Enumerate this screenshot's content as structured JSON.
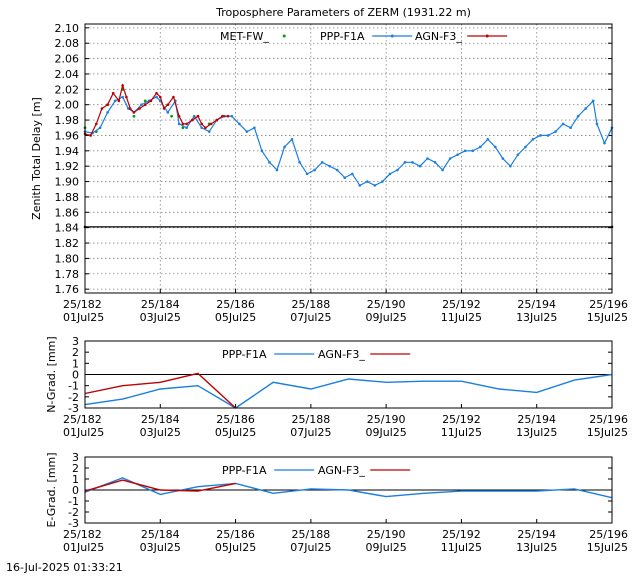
{
  "chart_data": [
    {
      "type": "scatter",
      "title": "Troposphere Parameters of ZERM (1931.22 m)",
      "ylabel": "Zenith Total Delay [m]",
      "xlabel": "",
      "xlim": [
        182,
        196
      ],
      "ylim": [
        1.755,
        2.105
      ],
      "yticks": [
        "1.76",
        "1.78",
        "1.80",
        "1.82",
        "1.84",
        "1.86",
        "1.88",
        "1.90",
        "1.92",
        "1.94",
        "1.96",
        "1.98",
        "2.00",
        "2.02",
        "2.04",
        "2.06",
        "2.08",
        "2.10"
      ],
      "xticks": [
        {
          "x": 182,
          "top": "25/182",
          "bottom": "01Jul25"
        },
        {
          "x": 184,
          "top": "25/184",
          "bottom": "03Jul25"
        },
        {
          "x": 186,
          "top": "25/186",
          "bottom": "05Jul25"
        },
        {
          "x": 188,
          "top": "25/188",
          "bottom": "07Jul25"
        },
        {
          "x": 190,
          "top": "25/190",
          "bottom": "09Jul25"
        },
        {
          "x": 192,
          "top": "25/192",
          "bottom": "11Jul25"
        },
        {
          "x": 194,
          "top": "25/194",
          "bottom": "13Jul25"
        },
        {
          "x": 196,
          "top": "25/196",
          "bottom": "15Jul25"
        }
      ],
      "grid": true,
      "legend": "top",
      "series": [
        {
          "name": "MET-FW_",
          "color": "#00a000",
          "style": "points",
          "x": [
            182.0,
            182.3,
            182.6,
            183.0,
            183.3,
            183.6,
            184.0,
            184.3,
            184.6,
            185.0,
            185.3,
            185.7
          ],
          "y": [
            1.97,
            1.965,
            2.0,
            2.02,
            1.985,
            2.005,
            2.005,
            1.985,
            1.97,
            1.985,
            1.975,
            1.985
          ]
        },
        {
          "name": "PPP-F1A",
          "color": "#1a7fe0",
          "style": "line-points",
          "x": [
            182.0,
            182.2,
            182.4,
            182.6,
            182.8,
            183.0,
            183.15,
            183.3,
            183.5,
            183.7,
            183.9,
            184.0,
            184.2,
            184.4,
            184.5,
            184.7,
            184.9,
            185.1,
            185.3,
            185.5,
            185.7,
            185.9,
            186.1,
            186.3,
            186.5,
            186.7,
            186.9,
            187.1,
            187.3,
            187.5,
            187.7,
            187.9,
            188.1,
            188.3,
            188.5,
            188.7,
            188.9,
            189.1,
            189.3,
            189.5,
            189.7,
            189.9,
            190.1,
            190.3,
            190.5,
            190.7,
            190.9,
            191.1,
            191.3,
            191.5,
            191.7,
            191.9,
            192.1,
            192.3,
            192.5,
            192.7,
            192.9,
            193.1,
            193.3,
            193.5,
            193.7,
            193.9,
            194.1,
            194.3,
            194.5,
            194.7,
            194.9,
            195.1,
            195.3,
            195.5,
            195.6,
            195.8,
            196.0
          ],
          "y": [
            1.965,
            1.963,
            1.97,
            1.99,
            2.005,
            2.01,
            1.995,
            1.99,
            2.0,
            2.005,
            2.01,
            2.005,
            1.99,
            2.005,
            1.975,
            1.97,
            1.985,
            1.97,
            1.965,
            1.98,
            1.985,
            1.985,
            1.975,
            1.965,
            1.97,
            1.94,
            1.925,
            1.915,
            1.945,
            1.955,
            1.925,
            1.91,
            1.915,
            1.925,
            1.92,
            1.915,
            1.905,
            1.91,
            1.895,
            1.9,
            1.895,
            1.9,
            1.91,
            1.915,
            1.925,
            1.925,
            1.92,
            1.93,
            1.925,
            1.915,
            1.93,
            1.935,
            1.94,
            1.94,
            1.945,
            1.955,
            1.945,
            1.93,
            1.92,
            1.935,
            1.945,
            1.955,
            1.96,
            1.96,
            1.965,
            1.975,
            1.97,
            1.985,
            1.995,
            2.005,
            1.975,
            1.95,
            1.97
          ]
        },
        {
          "name": "AGN-F3_",
          "color": "#c00000",
          "style": "line-points",
          "x": [
            182.0,
            182.15,
            182.3,
            182.45,
            182.6,
            182.75,
            182.9,
            183.0,
            183.1,
            183.2,
            183.3,
            183.45,
            183.6,
            183.75,
            183.9,
            184.0,
            184.1,
            184.2,
            184.35,
            184.5,
            184.6,
            184.7,
            184.85,
            185.0,
            185.1,
            185.2,
            185.35,
            185.5,
            185.65,
            185.8
          ],
          "y": [
            1.962,
            1.96,
            1.975,
            1.995,
            2.0,
            2.015,
            2.005,
            2.025,
            2.01,
            1.995,
            1.99,
            1.995,
            2.0,
            2.005,
            2.015,
            2.01,
            1.995,
            2.0,
            2.01,
            1.985,
            1.975,
            1.975,
            1.98,
            1.985,
            1.975,
            1.97,
            1.975,
            1.98,
            1.985,
            1.985
          ]
        },
        {
          "name": "",
          "color": "#000000",
          "style": "line-points",
          "x": [
            182.0,
            196.0
          ],
          "y": [
            1.841,
            1.841
          ]
        }
      ]
    },
    {
      "type": "line",
      "title": "",
      "ylabel": "N-Grad. [mm]",
      "xlim": [
        182,
        196
      ],
      "ylim": [
        -3,
        3
      ],
      "yticks": [
        "-3",
        "-2",
        "-1",
        "0",
        "1",
        "2",
        "3"
      ],
      "legend": "top",
      "series": [
        {
          "name": "PPP-F1A",
          "color": "#1a7fe0",
          "x": [
            182,
            183,
            184,
            185,
            186,
            187,
            188,
            189,
            190,
            191,
            192,
            193,
            194,
            195,
            196
          ],
          "y": [
            -2.7,
            -2.2,
            -1.3,
            -1.0,
            -3.0,
            -0.7,
            -1.3,
            -0.4,
            -0.7,
            -0.6,
            -0.6,
            -1.3,
            -1.6,
            -0.5,
            0.0
          ]
        },
        {
          "name": "AGN-F3_",
          "color": "#c00000",
          "x": [
            182,
            183,
            184,
            185,
            186
          ],
          "y": [
            -1.7,
            -1.0,
            -0.7,
            0.1,
            -3.0
          ]
        }
      ]
    },
    {
      "type": "line",
      "title": "",
      "ylabel": "E-Grad. [mm]",
      "xlim": [
        182,
        196
      ],
      "ylim": [
        -3,
        3
      ],
      "yticks": [
        "-3",
        "-2",
        "-1",
        "0",
        "1",
        "2",
        "3"
      ],
      "legend": "top",
      "series": [
        {
          "name": "PPP-F1A",
          "color": "#1a7fe0",
          "x": [
            182,
            183,
            184,
            185,
            186,
            187,
            188,
            189,
            190,
            191,
            192,
            193,
            194,
            195,
            196
          ],
          "y": [
            -0.2,
            1.1,
            -0.4,
            0.3,
            0.6,
            -0.3,
            0.1,
            0.0,
            -0.6,
            -0.3,
            -0.1,
            -0.1,
            -0.1,
            0.1,
            -0.7
          ]
        },
        {
          "name": "AGN-F3_",
          "color": "#c00000",
          "x": [
            182,
            183,
            184,
            185,
            186
          ],
          "y": [
            -0.1,
            0.9,
            0.0,
            -0.1,
            0.6
          ]
        }
      ]
    }
  ],
  "footer": {
    "timestamp": "16-Jul-2025 01:33:21"
  }
}
